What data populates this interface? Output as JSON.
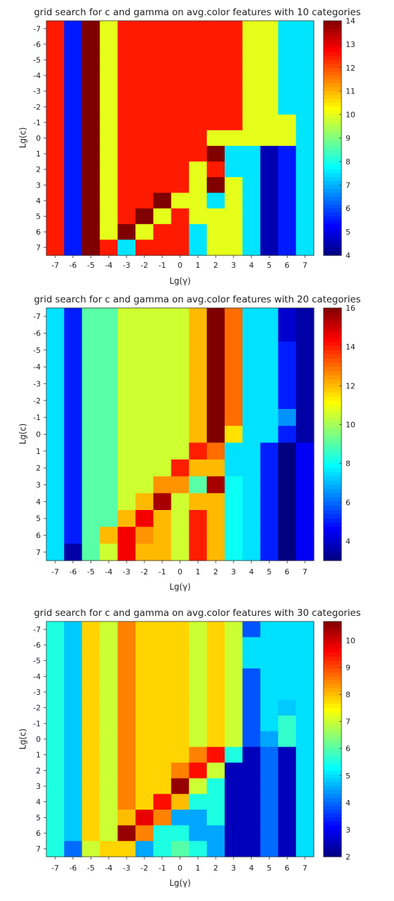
{
  "chart_data": [
    {
      "type": "heatmap",
      "title": "grid search for c and gamma on avg.color features with 10 categories",
      "xlabel": "Lg(γ)",
      "ylabel": "Lg(c)",
      "x": [
        -7,
        -6,
        -5,
        -4,
        -3,
        -2,
        -1,
        0,
        1,
        2,
        3,
        4,
        5,
        6,
        7
      ],
      "y": [
        -7,
        -6,
        -5,
        -4,
        -3,
        -2,
        -1,
        0,
        1,
        2,
        3,
        4,
        5,
        6,
        7
      ],
      "colorbar_ticks": [
        4,
        5,
        6,
        7,
        8,
        9,
        10,
        11,
        12,
        13,
        14
      ],
      "clim": [
        4,
        14
      ],
      "colormap": "jet",
      "values": [
        [
          12.5,
          5.5,
          14,
          10,
          12.5,
          12.5,
          12.5,
          12.5,
          12.5,
          12.5,
          12.5,
          10,
          10,
          7.5,
          7.5
        ],
        [
          12.5,
          5.5,
          14,
          10,
          12.5,
          12.5,
          12.5,
          12.5,
          12.5,
          12.5,
          12.5,
          10,
          10,
          7.5,
          7.5
        ],
        [
          12.5,
          5.5,
          14,
          10,
          12.5,
          12.5,
          12.5,
          12.5,
          12.5,
          12.5,
          12.5,
          10,
          10,
          7.5,
          7.5
        ],
        [
          12.5,
          5.5,
          14,
          10,
          12.5,
          12.5,
          12.5,
          12.5,
          12.5,
          12.5,
          12.5,
          10,
          10,
          7.5,
          7.5
        ],
        [
          12.5,
          5.5,
          14,
          10,
          12.5,
          12.5,
          12.5,
          12.5,
          12.5,
          12.5,
          12.5,
          10,
          10,
          7.5,
          7.5
        ],
        [
          12.5,
          5.5,
          14,
          10,
          12.5,
          12.5,
          12.5,
          12.5,
          12.5,
          12.5,
          12.5,
          10,
          10,
          7.5,
          7.5
        ],
        [
          12.5,
          5.5,
          14,
          10,
          12.5,
          12.5,
          12.5,
          12.5,
          12.5,
          12.5,
          12.5,
          10,
          10,
          10,
          7.5
        ],
        [
          12.5,
          5.5,
          14,
          10,
          12.5,
          12.5,
          12.5,
          12.5,
          12.5,
          10,
          10,
          10,
          10,
          10,
          7.5
        ],
        [
          12.5,
          5.5,
          14,
          10,
          12.5,
          12.5,
          12.5,
          12.5,
          12.5,
          14,
          7.5,
          7.5,
          4.5,
          5.5,
          7.5
        ],
        [
          12.5,
          5.5,
          14,
          10,
          12.5,
          12.5,
          12.5,
          12.5,
          10,
          12.5,
          7.5,
          7.5,
          4.5,
          5.5,
          7.5
        ],
        [
          12.5,
          5.5,
          14,
          10,
          12.5,
          12.5,
          12.5,
          12.5,
          10,
          14,
          10,
          7.5,
          4.5,
          5.5,
          7.5
        ],
        [
          12.5,
          5.5,
          14,
          10,
          12.5,
          12.5,
          14,
          10,
          10,
          7.5,
          10,
          7.5,
          4.5,
          5.5,
          7.5
        ],
        [
          12.5,
          5.5,
          14,
          10,
          12.5,
          14,
          10,
          12.5,
          10,
          10,
          10,
          7.5,
          4.5,
          5.5,
          7.5
        ],
        [
          12.5,
          5.5,
          14,
          10,
          14,
          10,
          12.5,
          12.5,
          7.5,
          10,
          10,
          7.5,
          4.5,
          5.5,
          7.5
        ],
        [
          12.5,
          5.5,
          14,
          12.5,
          7.5,
          12.5,
          12.5,
          12.5,
          7.5,
          10,
          10,
          7.5,
          4.5,
          5.5,
          7.5
        ]
      ]
    },
    {
      "type": "heatmap",
      "title": "grid search for c and gamma on avg.color features with 20 categories",
      "xlabel": "Lg(γ)",
      "ylabel": "Lg(c)",
      "x": [
        -7,
        -6,
        -5,
        -4,
        -3,
        -2,
        -1,
        0,
        1,
        2,
        3,
        4,
        5,
        6,
        7
      ],
      "y": [
        -7,
        -6,
        -5,
        -4,
        -3,
        -2,
        -1,
        0,
        1,
        2,
        3,
        4,
        5,
        6,
        7
      ],
      "colorbar_ticks": [
        4,
        6,
        8,
        10,
        12,
        14,
        16
      ],
      "clim": [
        3,
        16
      ],
      "colormap": "jet",
      "values": [
        [
          7.5,
          5,
          9,
          9,
          10.5,
          10.5,
          10.5,
          10.5,
          12,
          16,
          13,
          7.5,
          7.5,
          4,
          3.5
        ],
        [
          7.5,
          5,
          9,
          9,
          10.5,
          10.5,
          10.5,
          10.5,
          12,
          16,
          13,
          7.5,
          7.5,
          4,
          3.5
        ],
        [
          7.5,
          5,
          9,
          9,
          10.5,
          10.5,
          10.5,
          10.5,
          12,
          16,
          13,
          7.5,
          7.5,
          5,
          3.5
        ],
        [
          7.5,
          5,
          9,
          9,
          10.5,
          10.5,
          10.5,
          10.5,
          12,
          16,
          13,
          7.5,
          7.5,
          5,
          3.5
        ],
        [
          7.5,
          5,
          9,
          9,
          10.5,
          10.5,
          10.5,
          10.5,
          12,
          16,
          13,
          7.5,
          7.5,
          5,
          3.5
        ],
        [
          7.5,
          5,
          9,
          9,
          10.5,
          10.5,
          10.5,
          10.5,
          12,
          16,
          13,
          7.5,
          7.5,
          5,
          3.5
        ],
        [
          7.5,
          5,
          9,
          9,
          10.5,
          10.5,
          10.5,
          10.5,
          12,
          16,
          13,
          7.5,
          7.5,
          6.5,
          3.5
        ],
        [
          7.5,
          5,
          9,
          9,
          10.5,
          10.5,
          10.5,
          10.5,
          12,
          16,
          11.5,
          7.5,
          7.5,
          5,
          3.5
        ],
        [
          7.5,
          5,
          9,
          9,
          10.5,
          10.5,
          10.5,
          10.5,
          14,
          13,
          7.5,
          7.5,
          5,
          3,
          4.5
        ],
        [
          7.5,
          5,
          9,
          9,
          10.5,
          10.5,
          10.5,
          14,
          12,
          12,
          7.5,
          7.5,
          5,
          3,
          4.5
        ],
        [
          7.5,
          5,
          9,
          9,
          10.5,
          10.5,
          12.5,
          12.5,
          9,
          15.5,
          8,
          7.5,
          5,
          3,
          4.5
        ],
        [
          7.5,
          5,
          9,
          9,
          10.5,
          12,
          15.5,
          10.5,
          12,
          12,
          8,
          7.5,
          5,
          3,
          4.5
        ],
        [
          7.5,
          5,
          9,
          9,
          12,
          14.5,
          12,
          10.5,
          14,
          12,
          8,
          7.5,
          5,
          3,
          4.5
        ],
        [
          7.5,
          5,
          9,
          12,
          14.5,
          12.5,
          12,
          10.5,
          14,
          12,
          8,
          7.5,
          5,
          3,
          4.5
        ],
        [
          7.5,
          3.5,
          9,
          10.5,
          14.5,
          12,
          12,
          10.5,
          14,
          12,
          8,
          7.5,
          5,
          3,
          4.5
        ]
      ]
    },
    {
      "type": "heatmap",
      "title": "grid search for c and gamma on avg.color features with 30 categories",
      "xlabel": "Lg(γ)",
      "ylabel": "Lg(c)",
      "x": [
        -7,
        -6,
        -5,
        -4,
        -3,
        -2,
        -1,
        0,
        1,
        2,
        3,
        4,
        5,
        6,
        7
      ],
      "y": [
        -7,
        -6,
        -5,
        -4,
        -3,
        -2,
        -1,
        0,
        1,
        2,
        3,
        4,
        5,
        6,
        7
      ],
      "colorbar_ticks": [
        2,
        3,
        4,
        5,
        6,
        7,
        8,
        9,
        10
      ],
      "clim": [
        2,
        10.7
      ],
      "colormap": "jet",
      "values": [
        [
          5.5,
          4.8,
          7.8,
          7,
          8.5,
          7.8,
          7.8,
          7.8,
          7,
          7.8,
          7,
          3.8,
          5,
          5,
          5
        ],
        [
          5.5,
          4.8,
          7.8,
          7,
          8.5,
          7.8,
          7.8,
          7.8,
          7,
          7.8,
          7,
          5,
          5,
          5,
          5
        ],
        [
          5.5,
          4.8,
          7.8,
          7,
          8.5,
          7.8,
          7.8,
          7.8,
          7,
          7.8,
          7,
          5,
          5,
          5,
          5
        ],
        [
          5.5,
          4.8,
          7.8,
          7,
          8.5,
          7.8,
          7.8,
          7.8,
          7,
          7.8,
          7,
          3.8,
          5,
          5,
          5
        ],
        [
          5.5,
          4.8,
          7.8,
          7,
          8.5,
          7.8,
          7.8,
          7.8,
          7,
          7.8,
          7,
          3.8,
          5,
          5,
          5
        ],
        [
          5.5,
          4.8,
          7.8,
          7,
          8.5,
          7.8,
          7.8,
          7.8,
          7,
          7.8,
          7,
          3.8,
          5,
          4.8,
          5
        ],
        [
          5.5,
          4.8,
          7.8,
          7,
          8.5,
          7.8,
          7.8,
          7.8,
          7,
          7.8,
          7,
          3.8,
          5,
          5.7,
          5
        ],
        [
          5.5,
          4.8,
          7.8,
          7,
          8.5,
          7.8,
          7.8,
          7.8,
          7,
          7.8,
          7,
          3.8,
          4.5,
          5.7,
          5
        ],
        [
          5.5,
          4.8,
          7.8,
          7,
          8.5,
          7.8,
          7.8,
          7.8,
          8.5,
          9.5,
          5.5,
          2.5,
          4,
          2.5,
          5
        ],
        [
          5.5,
          4.8,
          7.8,
          7,
          8.5,
          7.8,
          7.8,
          8.5,
          9.5,
          7,
          2.5,
          2.5,
          4,
          2.5,
          5
        ],
        [
          5.5,
          4.8,
          7.8,
          7,
          8.5,
          7.8,
          7.8,
          10.5,
          7,
          5.5,
          2.5,
          2.5,
          4,
          2.5,
          5
        ],
        [
          5.5,
          4.8,
          7.8,
          7,
          8.5,
          7.8,
          9.5,
          8,
          5.5,
          5.5,
          2.5,
          2.5,
          4,
          2.5,
          5
        ],
        [
          5.5,
          4.8,
          7.8,
          7,
          8,
          9.8,
          8.5,
          4.5,
          4.5,
          5.5,
          2.5,
          2.5,
          4,
          2.5,
          5
        ],
        [
          5.5,
          4.8,
          7.8,
          7,
          10.5,
          8.5,
          5.5,
          5.5,
          4.5,
          4.5,
          2.5,
          2.5,
          4,
          2.5,
          5
        ],
        [
          5.5,
          4,
          7,
          7.8,
          7.8,
          4.5,
          5.5,
          6,
          5.5,
          4.5,
          2.5,
          2.5,
          4,
          2.5,
          5
        ]
      ]
    }
  ]
}
